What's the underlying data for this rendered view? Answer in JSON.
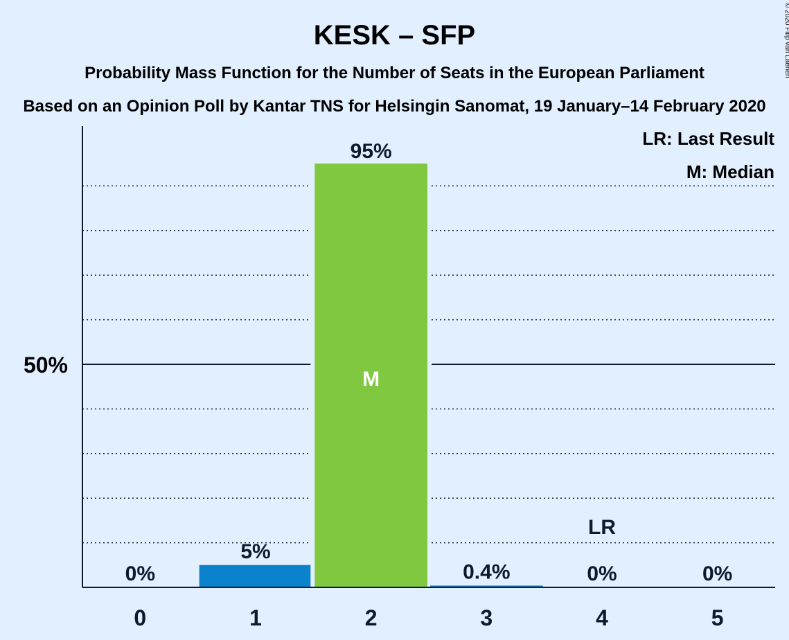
{
  "title": "KESK – SFP",
  "subtitle": "Probability Mass Function for the Number of Seats in the European Parliament",
  "source_line": "Based on an Opinion Poll by Kantar TNS for Helsingin Sanomat, 19 January–14 February 2020",
  "copyright": "© 2020 Filip van Laenen",
  "legend": {
    "last_result": "LR: Last Result",
    "median": "M: Median"
  },
  "colors": {
    "background": "#e2efff",
    "bar_default": "#0a82cc",
    "bar_median": "#80c840",
    "text": "#0d1a2b"
  },
  "chart_data": {
    "type": "bar",
    "categories": [
      "0",
      "1",
      "2",
      "3",
      "4",
      "5"
    ],
    "values": [
      0,
      5,
      95,
      0.4,
      0,
      0
    ],
    "value_labels": [
      "0%",
      "5%",
      "95%",
      "0.4%",
      "0%",
      "0%"
    ],
    "ylim": [
      0,
      100
    ],
    "y_tick_label": "50%",
    "y_tick_value": 50,
    "grid_minor_step": 10,
    "median_index": 2,
    "median_marker": "M",
    "last_result_index": 4,
    "last_result_marker": "LR"
  }
}
